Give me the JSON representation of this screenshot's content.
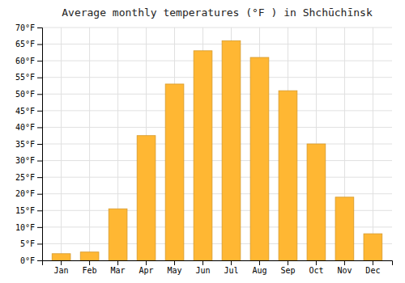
{
  "chart_data": {
    "type": "bar",
    "title": "Average monthly temperatures (°F ) in Shchūchīnsk",
    "categories": [
      "Jan",
      "Feb",
      "Mar",
      "Apr",
      "May",
      "Jun",
      "Jul",
      "Aug",
      "Sep",
      "Oct",
      "Nov",
      "Dec"
    ],
    "values": [
      2,
      2.5,
      15.5,
      37.5,
      53,
      63,
      66,
      61,
      51,
      35,
      19,
      8
    ],
    "color": "#FFB733",
    "ylim": [
      0,
      70
    ],
    "yticks": [
      {
        "value": 0,
        "label": "0°F"
      },
      {
        "value": 5,
        "label": "5°F"
      },
      {
        "value": 10,
        "label": "10°F"
      },
      {
        "value": 15,
        "label": "15°F"
      },
      {
        "value": 20,
        "label": "20°F"
      },
      {
        "value": 25,
        "label": "25°F"
      },
      {
        "value": 30,
        "label": "30°F"
      },
      {
        "value": 35,
        "label": "35°F"
      },
      {
        "value": 40,
        "label": "40°F"
      },
      {
        "value": 45,
        "label": "45°F"
      },
      {
        "value": 50,
        "label": "50°F"
      },
      {
        "value": 55,
        "label": "55°F"
      },
      {
        "value": 60,
        "label": "60°F"
      },
      {
        "value": 65,
        "label": "65°F"
      },
      {
        "value": 70,
        "label": "70°F"
      }
    ],
    "grid": true
  }
}
